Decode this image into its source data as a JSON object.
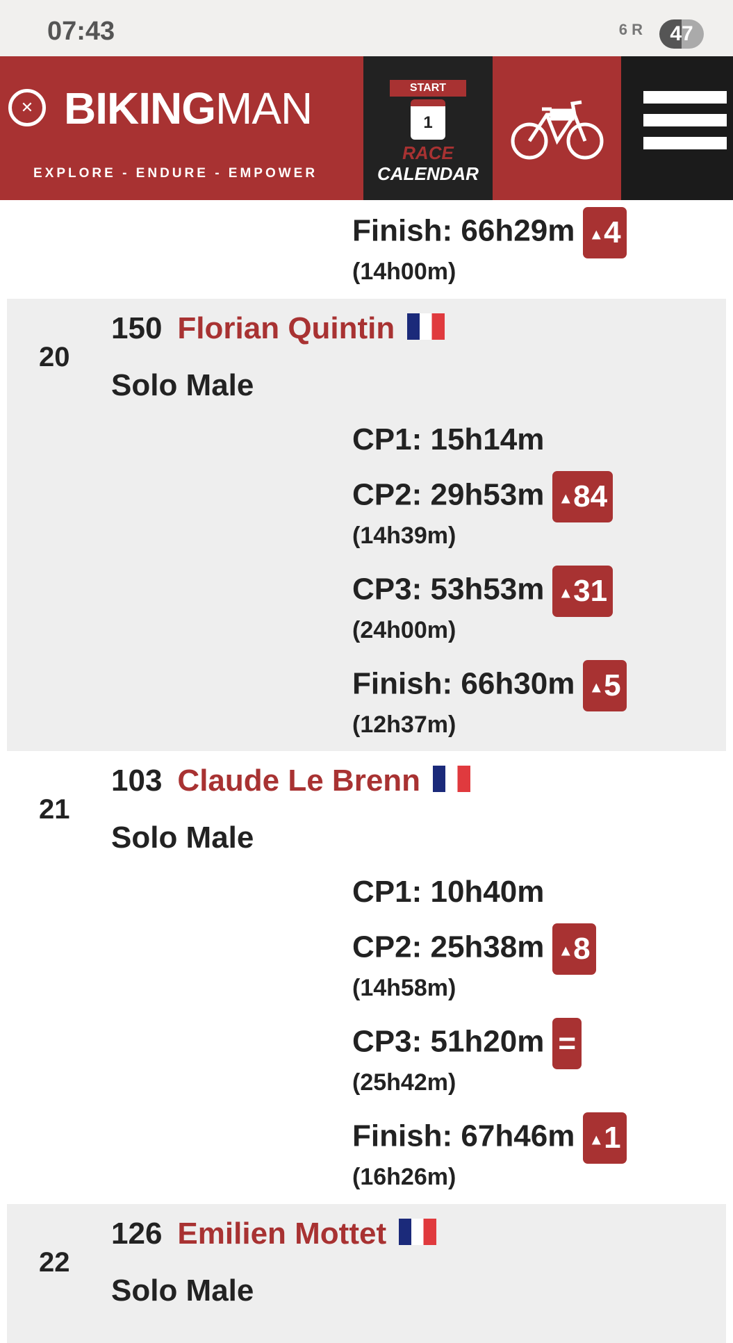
{
  "status_bar": {
    "time": "07:43",
    "signal_text": "6 R",
    "battery": "47"
  },
  "header": {
    "brand_bold": "BIKING",
    "brand_light": "MAN",
    "tagline": "EXPLORE - ENDURE - EMPOWER",
    "calendar": {
      "start": "START",
      "day": "1",
      "race": "RACE",
      "calendar": "CALENDAR"
    }
  },
  "colors": {
    "accent": "#a83232",
    "row_alt": "#eeeeee",
    "text": "#222222"
  },
  "partial_top": {
    "splits": [
      {
        "label": "Finish: 66h29m",
        "badge": "4",
        "badge_icon": "arrow-up",
        "sub": "(14h00m)"
      }
    ]
  },
  "riders": [
    {
      "rank": "20",
      "bib": "150",
      "name": "Florian Quintin",
      "flag": "france-flag",
      "category": "Solo Male",
      "splits": [
        {
          "label": "CP1: 15h14m"
        },
        {
          "label": "CP2: 29h53m",
          "badge": "84",
          "badge_icon": "arrow-up",
          "sub": "(14h39m)"
        },
        {
          "label": "CP3: 53h53m",
          "badge": "31",
          "badge_icon": "arrow-up",
          "sub": "(24h00m)"
        },
        {
          "label": "Finish: 66h30m",
          "badge": "5",
          "badge_icon": "arrow-up",
          "sub": "(12h37m)"
        }
      ]
    },
    {
      "rank": "21",
      "bib": "103",
      "name": "Claude Le Brenn",
      "flag": "france-flag",
      "category": "Solo Male",
      "splits": [
        {
          "label": "CP1: 10h40m"
        },
        {
          "label": "CP2: 25h38m",
          "badge": "8",
          "badge_icon": "arrow-up",
          "sub": "(14h58m)"
        },
        {
          "label": "CP3: 51h20m",
          "badge": "=",
          "badge_icon": "equal",
          "sub": "(25h42m)"
        },
        {
          "label": "Finish: 67h46m",
          "badge": "1",
          "badge_icon": "arrow-up",
          "sub": "(16h26m)"
        }
      ]
    },
    {
      "rank": "22",
      "bib": "126",
      "name": "Emilien Mottet",
      "flag": "france-flag",
      "category": "Solo Male",
      "splits": []
    }
  ]
}
